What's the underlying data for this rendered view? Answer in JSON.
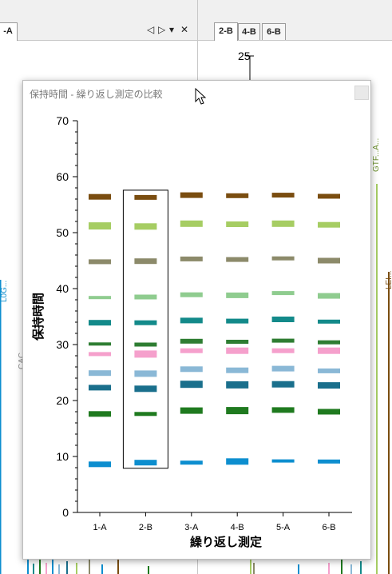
{
  "left_pane": {
    "tab_label": "-A"
  },
  "right_pane": {
    "tabs": [
      {
        "label": "2-B",
        "active": true
      },
      {
        "label": "4-B"
      },
      {
        "label": "6-B"
      }
    ]
  },
  "background": {
    "y_tick": "25",
    "labels": [
      "GTF...A...",
      "LEI...",
      "CAC",
      "L0G..."
    ]
  },
  "dialog": {
    "title": "保持時間 - 繰り返し測定の比較"
  },
  "chart_data": {
    "type": "scatter",
    "xlabel": "繰り返し測定",
    "ylabel": "保持時間",
    "ylim": [
      0,
      70
    ],
    "yticks": [
      0,
      10,
      20,
      30,
      40,
      50,
      60,
      70
    ],
    "categories": [
      "1-A",
      "2-B",
      "3-A",
      "4-B",
      "5-A",
      "6-B"
    ],
    "selected_category": "2-B",
    "series": [
      {
        "color": "#0d8ecf",
        "values": [
          8.6,
          8.9,
          8.9,
          9.1,
          9.2,
          9.1
        ],
        "thick": [
          7,
          7,
          5,
          8,
          4,
          5
        ]
      },
      {
        "color": "#1f7a1f",
        "values": [
          17.6,
          17.6,
          18.2,
          18.2,
          18.3,
          18.0
        ],
        "thick": [
          7,
          5,
          8,
          9,
          7,
          7
        ]
      },
      {
        "color": "#1a6f8c",
        "values": [
          22.3,
          22.1,
          22.9,
          22.8,
          22.9,
          22.7
        ],
        "thick": [
          7,
          8,
          9,
          9,
          8,
          8
        ]
      },
      {
        "color": "#8ab8d6",
        "values": [
          24.9,
          24.8,
          25.6,
          25.4,
          25.7,
          25.3
        ],
        "thick": [
          7,
          8,
          7,
          7,
          7,
          6
        ]
      },
      {
        "color": "#f5a0cc",
        "values": [
          28.3,
          28.3,
          28.9,
          28.9,
          28.9,
          28.9
        ],
        "thick": [
          5,
          9,
          6,
          8,
          6,
          8
        ]
      },
      {
        "color": "#2e7d32",
        "values": [
          30.1,
          30.0,
          30.6,
          30.5,
          30.7,
          30.4
        ],
        "thick": [
          4,
          5,
          6,
          5,
          5,
          5
        ]
      },
      {
        "color": "#138a8a",
        "values": [
          33.9,
          33.9,
          34.3,
          34.2,
          34.5,
          34.1
        ],
        "thick": [
          7,
          6,
          7,
          6,
          7,
          5
        ]
      },
      {
        "color": "#8fcc8f",
        "values": [
          38.4,
          38.5,
          38.9,
          38.8,
          39.2,
          38.7
        ],
        "thick": [
          4,
          6,
          6,
          7,
          5,
          7
        ]
      },
      {
        "color": "#8c8a6a",
        "values": [
          44.8,
          44.9,
          45.3,
          45.2,
          45.4,
          45.0
        ],
        "thick": [
          6,
          7,
          6,
          6,
          5,
          7
        ]
      },
      {
        "color": "#a6cd63",
        "values": [
          51.2,
          51.1,
          51.6,
          51.5,
          51.6,
          51.4
        ],
        "thick": [
          9,
          8,
          8,
          7,
          8,
          7
        ]
      },
      {
        "color": "#7a4d10",
        "values": [
          56.4,
          56.3,
          56.7,
          56.6,
          56.7,
          56.5
        ],
        "thick": [
          7,
          6,
          7,
          6,
          6,
          6
        ]
      }
    ]
  }
}
